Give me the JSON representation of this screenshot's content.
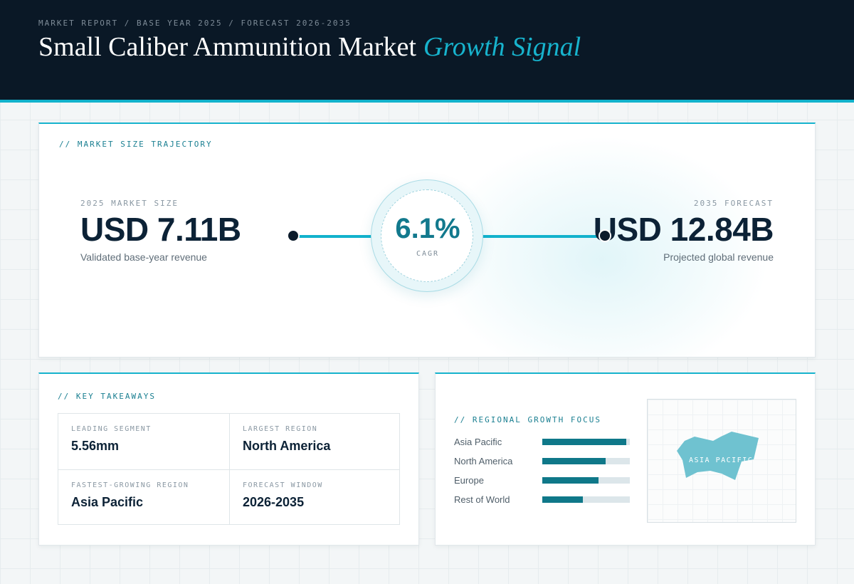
{
  "header": {
    "kicker": "MARKET REPORT / BASE YEAR 2025 / FORECAST 2026-2035",
    "title_main": "Small Caliber Ammunition Market",
    "title_accent": "Growth Signal"
  },
  "trajectory": {
    "section_label": "// MARKET SIZE TRAJECTORY",
    "start": {
      "label": "2025 MARKET SIZE",
      "value": "USD 7.11B",
      "sub": "Validated base-year revenue"
    },
    "end": {
      "label": "2035 FORECAST",
      "value": "USD 12.84B",
      "sub": "Projected global revenue"
    },
    "cagr": {
      "value": "6.1%",
      "label": "CAGR"
    }
  },
  "takeaways": {
    "section_label": "// KEY TAKEAWAYS",
    "items": [
      {
        "label": "LEADING SEGMENT",
        "value": "5.56mm"
      },
      {
        "label": "LARGEST REGION",
        "value": "North America"
      },
      {
        "label": "FASTEST-GROWING REGION",
        "value": "Asia Pacific"
      },
      {
        "label": "FORECAST WINDOW",
        "value": "2026-2035"
      }
    ]
  },
  "regional": {
    "section_label": "// REGIONAL GROWTH FOCUS",
    "bars": [
      {
        "label": "Asia Pacific",
        "fraction": 0.96
      },
      {
        "label": "North America",
        "fraction": 0.72
      },
      {
        "label": "Europe",
        "fraction": 0.64
      },
      {
        "label": "Rest of World",
        "fraction": 0.46
      }
    ],
    "map_label": "ASIA PACIFIC"
  },
  "colors": {
    "accent": "#17b3cd",
    "accent_dark": "#0f7889",
    "navy": "#0a1826",
    "text_dark": "#0c2236"
  }
}
